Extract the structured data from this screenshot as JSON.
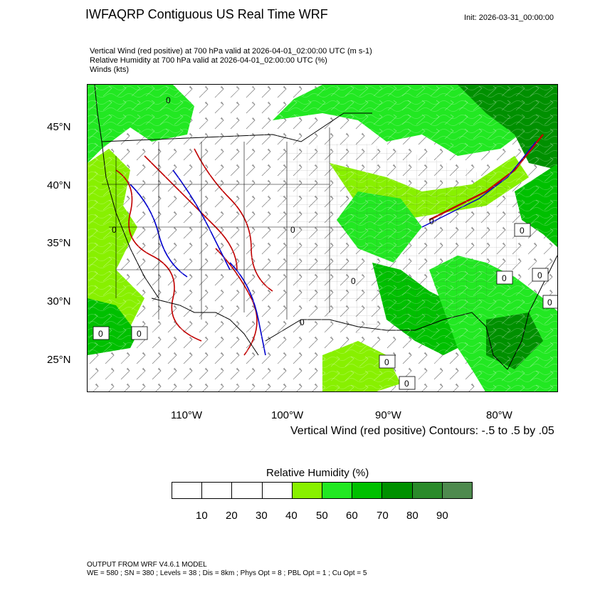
{
  "header": {
    "title": "IWFAQRP Contiguous US Real Time WRF",
    "init": "Init: 2026-03-31_00:00:00"
  },
  "subtitles": [
    "Vertical Wind (red positive) at 700 hPa valid at 2026-04-01_02:00:00 UTC   (m s-1)",
    "Relative Humidity at 700 hPa valid at 2026-04-01_02:00:00 UTC   (%)",
    "Winds   (kts)"
  ],
  "map": {
    "lat_labels": [
      "45°N",
      "40°N",
      "35°N",
      "30°N",
      "25°N"
    ],
    "lon_labels": [
      "110°W",
      "100°W",
      "90°W",
      "80°W"
    ],
    "contour_label": "0",
    "colors": {
      "rh_40_50": "#88f000",
      "rh_50_60": "#22e822",
      "rh_60_70": "#00c000",
      "rh_70_80": "#009000",
      "rh_80_90": "#2a8a2a",
      "rh_90_100": "#4e8a4e",
      "vertical_up": "#c00000",
      "vertical_down": "#0000cc",
      "state_lines": "#000000",
      "wind_barbs_on_land": "#000000",
      "wind_barbs_on_moist": "#ffffff"
    }
  },
  "contour_note": "Vertical Wind (red positive) Contours: -.5 to .5 by .05",
  "legend": {
    "title": "Relative Humidity  (%)",
    "labels": [
      "10",
      "20",
      "30",
      "40",
      "50",
      "60",
      "70",
      "80",
      "90"
    ],
    "colors": [
      "#ffffff",
      "#ffffff",
      "#ffffff",
      "#ffffff",
      "#88f000",
      "#22e822",
      "#00c000",
      "#009000",
      "#2a8a2a",
      "#4e8a4e"
    ]
  },
  "footer": {
    "line1": "OUTPUT FROM WRF V4.6.1 MODEL",
    "line2": "WE = 580 ; SN = 380 ; Levels = 38 ; Dis = 8km ; Phys Opt = 8 ; PBL Opt = 1 ; Cu Opt = 5"
  }
}
